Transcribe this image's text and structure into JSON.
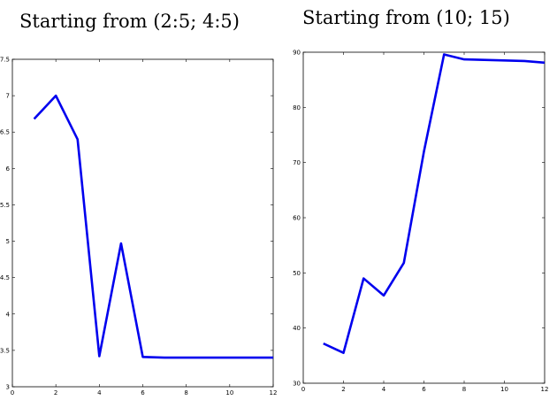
{
  "chart_data": [
    {
      "type": "line",
      "title": "Starting from (2:5; 4:5)",
      "xlim": [
        0,
        12
      ],
      "ylim": [
        3,
        7.5
      ],
      "xticks": [
        "0",
        "2",
        "4",
        "6",
        "8",
        "10",
        "12"
      ],
      "yticks": [
        "3",
        "3.5",
        "4",
        "4.5",
        "5",
        "5.5",
        "6",
        "6.5",
        "7",
        "7.5"
      ],
      "grid": false,
      "series": [
        {
          "color": "#0000ee",
          "x": [
            1,
            2,
            3,
            4,
            5,
            6,
            7,
            8,
            9,
            10,
            11,
            12
          ],
          "y": [
            6.68,
            7.0,
            6.4,
            3.42,
            4.97,
            3.41,
            3.4,
            3.4,
            3.4,
            3.4,
            3.4,
            3.4
          ]
        }
      ]
    },
    {
      "type": "line",
      "title": "Starting from (10; 15)",
      "xlim": [
        0,
        12
      ],
      "ylim": [
        30,
        90
      ],
      "xticks": [
        "0",
        "2",
        "4",
        "6",
        "8",
        "10",
        "12"
      ],
      "yticks": [
        "30",
        "40",
        "50",
        "60",
        "70",
        "80",
        "90"
      ],
      "grid": false,
      "series": [
        {
          "color": "#0000ee",
          "x": [
            1,
            2,
            3,
            4,
            5,
            6,
            7,
            8,
            9,
            10,
            11,
            12
          ],
          "y": [
            37.2,
            35.5,
            49.0,
            45.9,
            51.8,
            72.0,
            89.6,
            88.7,
            88.6,
            88.5,
            88.4,
            88.1
          ]
        }
      ]
    }
  ]
}
